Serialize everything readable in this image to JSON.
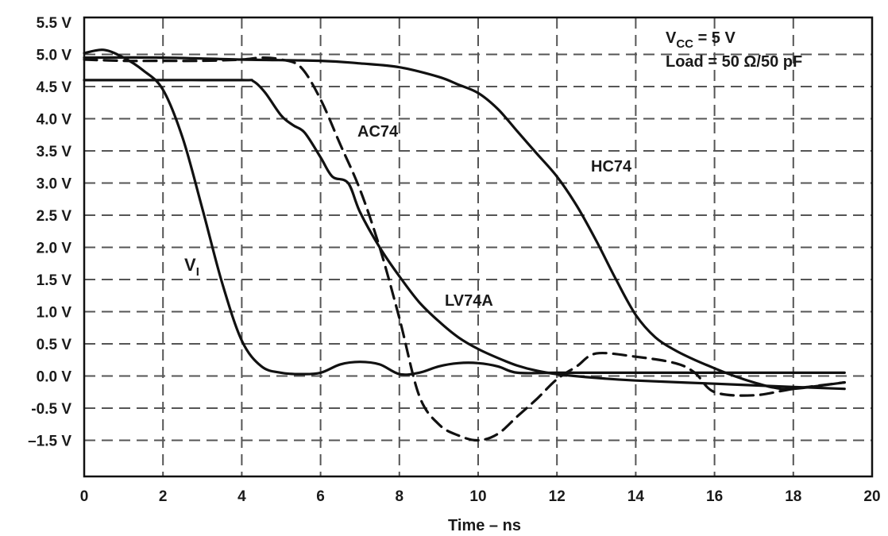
{
  "chart_data": {
    "type": "line",
    "xlabel": "Time – ns",
    "ylabel": "",
    "xlim": [
      0,
      20
    ],
    "x_ticks": [
      "0",
      "2",
      "4",
      "6",
      "8",
      "10",
      "12",
      "14",
      "16",
      "18",
      "20"
    ],
    "y_ticks": [
      "5.5 V",
      "5.0 V",
      "4.5 V",
      "4.0 V",
      "3.5 V",
      "3.0 V",
      "2.5 V",
      "2.0 V",
      "1.5 V",
      "1.0 V",
      "0.5 V",
      "0.0 V",
      "-0.5 V",
      "–1.5 V"
    ],
    "grid": true,
    "annotations": {
      "vcc": {
        "main": "V",
        "sub": "CC",
        "rest": " = 5 V"
      },
      "load": "Load = 50 Ω/50 pF"
    },
    "series_labels": {
      "vi": {
        "main": "V",
        "sub": "I"
      },
      "ac74": "AC74",
      "hc74": "HC74",
      "lv74a": "LV74A"
    },
    "series": [
      {
        "name": "VI",
        "style": "solid",
        "x": [
          0,
          0.5,
          1.0,
          1.5,
          2.0,
          2.5,
          3.0,
          3.5,
          4.0,
          4.5,
          5.0,
          5.5,
          6.0,
          6.5,
          7.0,
          7.5,
          8.0,
          8.5,
          9.0,
          9.5,
          10.0,
          10.5,
          11.0,
          12.0,
          14.0,
          16.0,
          18.0,
          19.3
        ],
        "y": [
          5.02,
          5.07,
          4.95,
          4.75,
          4.45,
          3.7,
          2.6,
          1.45,
          0.55,
          0.15,
          0.05,
          0.03,
          0.05,
          0.18,
          0.22,
          0.18,
          0.03,
          0.05,
          0.15,
          0.2,
          0.2,
          0.15,
          0.05,
          0.05,
          0.05,
          0.05,
          0.05,
          0.05
        ]
      },
      {
        "name": "AC74",
        "style": "dashed",
        "x": [
          0,
          1.0,
          2.0,
          3.0,
          4.0,
          4.5,
          5.0,
          5.5,
          6.0,
          6.5,
          7.0,
          7.5,
          8.0,
          8.5,
          9.0,
          9.5,
          10.0,
          10.5,
          11.0,
          11.5,
          12.0,
          12.5,
          13.0,
          14.0,
          15.0,
          15.5,
          16.0,
          17.0,
          18.0,
          19.3
        ],
        "y": [
          4.92,
          4.9,
          4.9,
          4.9,
          4.92,
          4.95,
          4.92,
          4.8,
          4.3,
          3.6,
          2.9,
          2.0,
          0.9,
          -0.3,
          -1.0,
          -1.35,
          -1.5,
          -1.3,
          -0.75,
          -0.35,
          -0.05,
          0.15,
          0.35,
          0.3,
          0.2,
          0.05,
          -0.25,
          -0.3,
          -0.2,
          -0.1
        ]
      },
      {
        "name": "HC74",
        "style": "solid",
        "x": [
          0,
          2.0,
          4.0,
          6.0,
          7.0,
          8.0,
          9.0,
          9.5,
          10.0,
          10.5,
          11.0,
          11.5,
          12.0,
          12.5,
          13.0,
          13.5,
          14.0,
          14.5,
          15.0,
          15.5,
          16.0,
          16.5,
          17.0,
          17.5,
          18.0,
          19.3
        ],
        "y": [
          4.95,
          4.95,
          4.92,
          4.9,
          4.86,
          4.8,
          4.65,
          4.53,
          4.4,
          4.15,
          3.8,
          3.45,
          3.1,
          2.65,
          2.1,
          1.5,
          0.95,
          0.6,
          0.4,
          0.25,
          0.12,
          0.0,
          -0.1,
          -0.18,
          -0.2,
          -0.1
        ]
      },
      {
        "name": "LV74A",
        "style": "solid",
        "x": [
          0,
          2.0,
          4.0,
          4.3,
          4.6,
          5.0,
          5.3,
          5.6,
          6.0,
          6.3,
          6.7,
          7.0,
          7.5,
          8.0,
          8.5,
          9.0,
          9.5,
          10.0,
          10.5,
          11.0,
          11.5,
          12.0,
          13.0,
          14.0,
          16.0,
          18.0,
          19.3
        ],
        "y": [
          4.6,
          4.6,
          4.6,
          4.58,
          4.4,
          4.05,
          3.9,
          3.78,
          3.4,
          3.1,
          3.0,
          2.55,
          2.0,
          1.55,
          1.15,
          0.85,
          0.6,
          0.42,
          0.28,
          0.16,
          0.08,
          0.03,
          -0.03,
          -0.07,
          -0.12,
          -0.17,
          -0.2
        ]
      }
    ]
  }
}
